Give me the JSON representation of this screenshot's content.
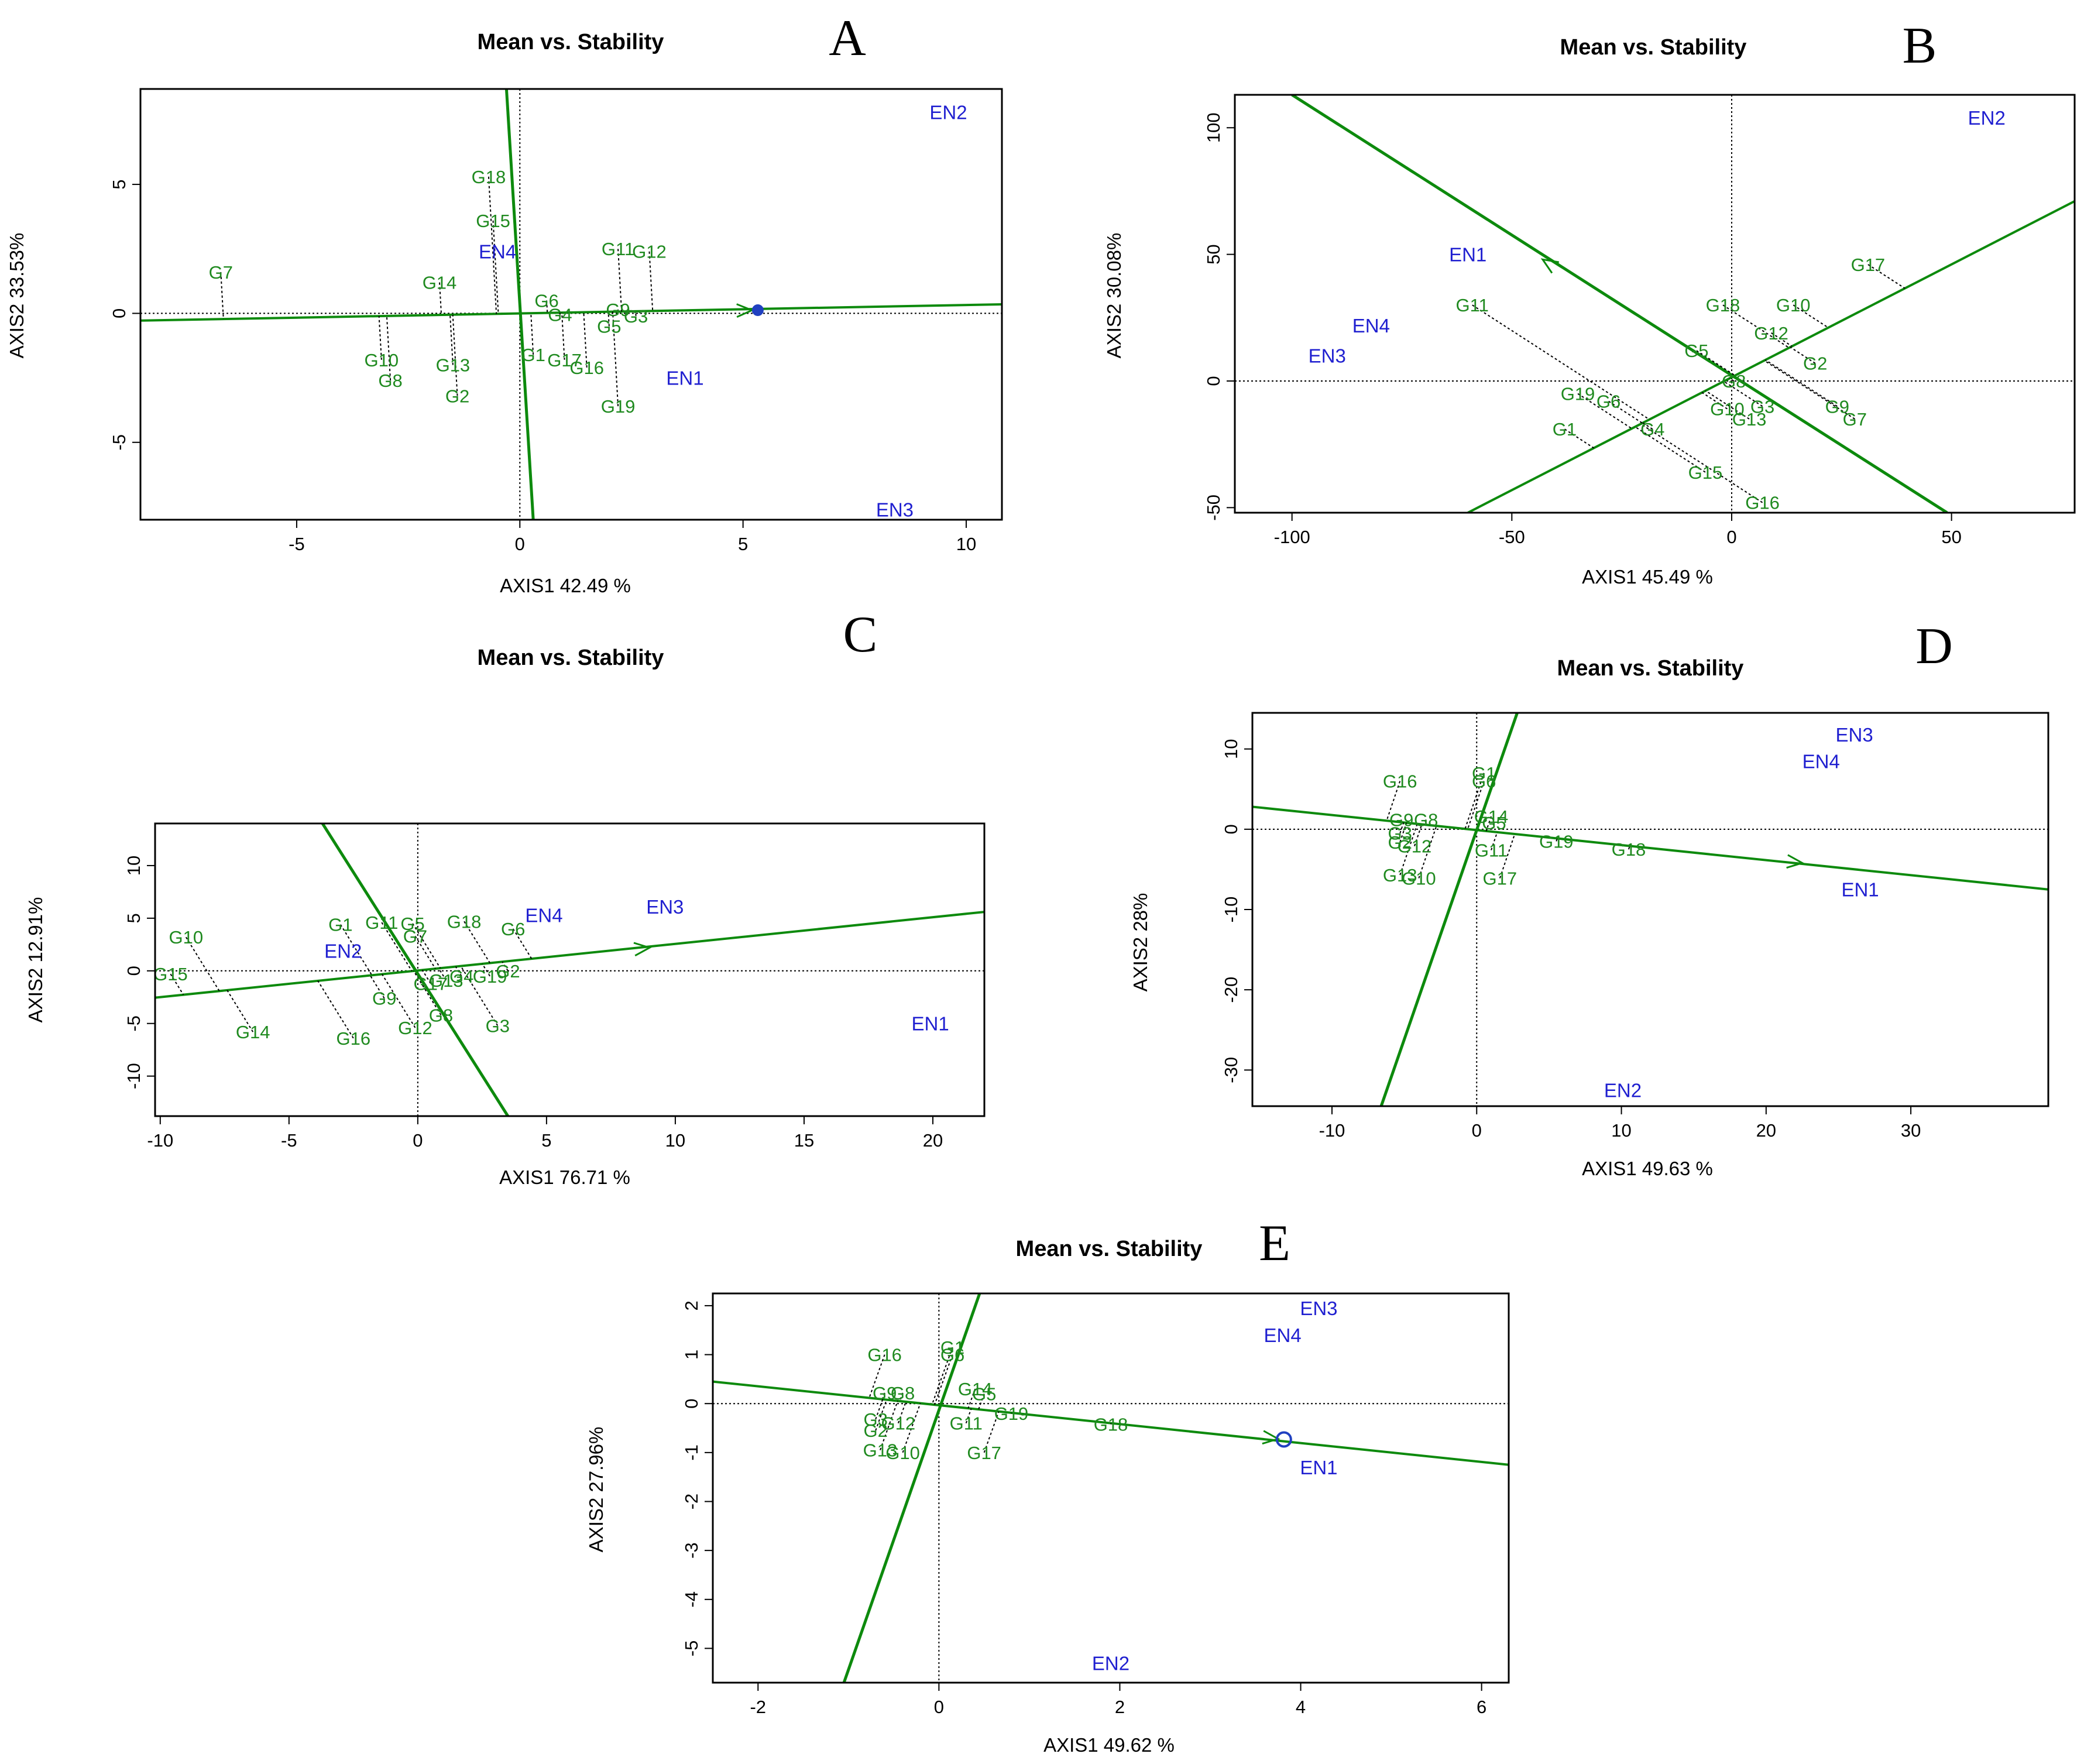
{
  "colors": {
    "genotype": "#1f8a1f",
    "environment": "#1f1fd0",
    "axis": "#0d8a0d",
    "frame": "#000000"
  },
  "chart_data": [
    {
      "id": "A",
      "type": "scatter",
      "panel_letter": "A",
      "title": "Mean vs. Stability",
      "xlabel": "AXIS1 42.49 %",
      "ylabel": "AXIS2 33.53%",
      "xlim": [
        -8.5,
        10.8
      ],
      "ylim": [
        -8.0,
        8.7
      ],
      "xticks": [
        -5,
        0,
        5,
        10
      ],
      "yticks": [
        -5,
        0,
        5
      ],
      "aec_abscissa": [
        [
          -8.5,
          -0.28
        ],
        [
          10.8,
          0.35
        ]
      ],
      "aec_ordinate": [
        [
          -0.3,
          8.7
        ],
        [
          0.3,
          -8.0
        ]
      ],
      "arrow_at": [
        5.2,
        0.12
      ],
      "environments": [
        {
          "name": "EN2",
          "x": 9.6,
          "y": 7.8
        },
        {
          "name": "EN4",
          "x": -0.5,
          "y": 2.4
        },
        {
          "name": "EN1",
          "x": 3.7,
          "y": -2.5
        },
        {
          "name": "EN3",
          "x": 8.4,
          "y": -7.6
        }
      ],
      "genotypes": [
        {
          "name": "G18",
          "x": -0.7,
          "y": 5.3
        },
        {
          "name": "G15",
          "x": -0.6,
          "y": 3.6
        },
        {
          "name": "G7",
          "x": -6.7,
          "y": 1.6
        },
        {
          "name": "G14",
          "x": -1.8,
          "y": 1.2
        },
        {
          "name": "G11",
          "x": 2.2,
          "y": 2.5
        },
        {
          "name": "G12",
          "x": 2.9,
          "y": 2.4
        },
        {
          "name": "G6",
          "x": 0.6,
          "y": 0.5
        },
        {
          "name": "G4",
          "x": 0.9,
          "y": -0.05
        },
        {
          "name": "G9",
          "x": 2.2,
          "y": 0.15
        },
        {
          "name": "G3",
          "x": 2.6,
          "y": -0.1
        },
        {
          "name": "G5",
          "x": 2.0,
          "y": -0.5
        },
        {
          "name": "G10",
          "x": -3.1,
          "y": -1.8
        },
        {
          "name": "G13",
          "x": -1.5,
          "y": -2.0
        },
        {
          "name": "G8",
          "x": -2.9,
          "y": -2.6
        },
        {
          "name": "G2",
          "x": -1.4,
          "y": -3.2
        },
        {
          "name": "G1",
          "x": 0.3,
          "y": -1.6
        },
        {
          "name": "G17",
          "x": 1.0,
          "y": -1.8
        },
        {
          "name": "G16",
          "x": 1.5,
          "y": -2.1
        },
        {
          "name": "G19",
          "x": 2.2,
          "y": -3.6
        }
      ]
    },
    {
      "id": "B",
      "type": "scatter",
      "panel_letter": "B",
      "title": "Mean vs. Stability",
      "xlabel": "AXIS1 45.49 %",
      "ylabel": "AXIS2 30.08%",
      "xlim": [
        -113,
        78
      ],
      "ylim": [
        -52,
        113
      ],
      "xticks": [
        -100,
        -50,
        0,
        50
      ],
      "yticks": [
        -50,
        0,
        50,
        100
      ],
      "aec_abscissa": [
        [
          -60,
          -52
        ],
        [
          78,
          71
        ]
      ],
      "aec_ordinate": [
        [
          -100,
          113
        ],
        [
          49,
          -52
        ]
      ],
      "arrow_at": [
        -43,
        48
      ],
      "environments": [
        {
          "name": "EN2",
          "x": 58,
          "y": 104
        },
        {
          "name": "EN1",
          "x": -60,
          "y": 50
        },
        {
          "name": "EN4",
          "x": -82,
          "y": 22
        },
        {
          "name": "EN3",
          "x": -92,
          "y": 10
        }
      ],
      "genotypes": [
        {
          "name": "G17",
          "x": 31,
          "y": 46
        },
        {
          "name": "G11",
          "x": -59,
          "y": 30
        },
        {
          "name": "G18",
          "x": -2,
          "y": 30
        },
        {
          "name": "G10",
          "x": 14,
          "y": 30
        },
        {
          "name": "G12",
          "x": 9,
          "y": 19
        },
        {
          "name": "G5",
          "x": -8,
          "y": 12
        },
        {
          "name": "G2",
          "x": 19,
          "y": 7
        },
        {
          "name": "G8",
          "x": 0.5,
          "y": 0
        },
        {
          "name": "G19",
          "x": -35,
          "y": -5
        },
        {
          "name": "G6",
          "x": -28,
          "y": -8
        },
        {
          "name": "G1",
          "x": -38,
          "y": -19
        },
        {
          "name": "G4",
          "x": -18,
          "y": -19
        },
        {
          "name": "G10",
          "x": -1,
          "y": -11
        },
        {
          "name": "G3",
          "x": 7,
          "y": -10
        },
        {
          "name": "G13",
          "x": 4,
          "y": -15
        },
        {
          "name": "G9",
          "x": 24,
          "y": -10
        },
        {
          "name": "G7",
          "x": 28,
          "y": -15
        },
        {
          "name": "G15",
          "x": -6,
          "y": -36
        },
        {
          "name": "G16",
          "x": 7,
          "y": -48
        }
      ]
    },
    {
      "id": "C",
      "type": "scatter",
      "panel_letter": "C",
      "title": "Mean vs. Stability",
      "xlabel": "AXIS1 76.71 %",
      "ylabel": "AXIS2 12.91%",
      "xlim": [
        -10.2,
        22
      ],
      "ylim": [
        -13.8,
        14
      ],
      "xticks": [
        -10,
        -5,
        0,
        5,
        10,
        15,
        20
      ],
      "yticks": [
        -10,
        -5,
        0,
        5,
        10
      ],
      "aec_abscissa": [
        [
          -10.2,
          -2.55
        ],
        [
          22,
          5.6
        ]
      ],
      "aec_ordinate": [
        [
          -3.7,
          14
        ],
        [
          3.5,
          -13.8
        ]
      ],
      "arrow_at": [
        9,
        2.2
      ],
      "environments": [
        {
          "name": "EN4",
          "x": 4.9,
          "y": 5.3
        },
        {
          "name": "EN3",
          "x": 9.6,
          "y": 6.1
        },
        {
          "name": "EN2",
          "x": -2.9,
          "y": 1.9
        },
        {
          "name": "EN1",
          "x": 19.9,
          "y": -5.0
        }
      ],
      "genotypes": [
        {
          "name": "G10",
          "x": -9.0,
          "y": 3.2
        },
        {
          "name": "G15",
          "x": -9.6,
          "y": -0.3
        },
        {
          "name": "G14",
          "x": -6.4,
          "y": -5.8
        },
        {
          "name": "G1",
          "x": -3.0,
          "y": 4.4
        },
        {
          "name": "G11",
          "x": -1.4,
          "y": 4.6
        },
        {
          "name": "G5",
          "x": -0.2,
          "y": 4.5
        },
        {
          "name": "G7",
          "x": -0.1,
          "y": 3.3
        },
        {
          "name": "G18",
          "x": 1.8,
          "y": 4.7
        },
        {
          "name": "G6",
          "x": 3.7,
          "y": 4.0
        },
        {
          "name": "G4",
          "x": 1.7,
          "y": -0.5
        },
        {
          "name": "G17",
          "x": 0.5,
          "y": -1.2
        },
        {
          "name": "G13",
          "x": 1.1,
          "y": -0.9
        },
        {
          "name": "G19",
          "x": 2.8,
          "y": -0.5
        },
        {
          "name": "G2",
          "x": 3.5,
          "y": 0.0
        },
        {
          "name": "G9",
          "x": -1.3,
          "y": -2.6
        },
        {
          "name": "G8",
          "x": 0.9,
          "y": -4.2
        },
        {
          "name": "G12",
          "x": -0.1,
          "y": -5.4
        },
        {
          "name": "G3",
          "x": 3.1,
          "y": -5.2
        },
        {
          "name": "G16",
          "x": -2.5,
          "y": -6.4
        }
      ]
    },
    {
      "id": "D",
      "type": "scatter",
      "panel_letter": "D",
      "title": "Mean vs. Stability",
      "xlabel": "AXIS1 49.63 %",
      "ylabel": "AXIS2 28%",
      "xlim": [
        -15.5,
        39.5
      ],
      "ylim": [
        -34.5,
        14.5
      ],
      "xticks": [
        -10,
        0,
        10,
        20,
        30
      ],
      "yticks": [
        -30,
        -20,
        -10,
        0,
        10
      ],
      "aec_abscissa": [
        [
          -15.5,
          2.8
        ],
        [
          39.5,
          -7.5
        ]
      ],
      "aec_ordinate": [
        [
          -6.6,
          -34.5
        ],
        [
          2.8,
          14.5
        ]
      ],
      "arrow_at": [
        22.5,
        -4.2
      ],
      "environments": [
        {
          "name": "EN3",
          "x": 26.1,
          "y": 11.8
        },
        {
          "name": "EN4",
          "x": 23.8,
          "y": 8.5
        },
        {
          "name": "EN1",
          "x": 26.5,
          "y": -7.5
        },
        {
          "name": "EN2",
          "x": 10.1,
          "y": -32.5
        }
      ],
      "genotypes": [
        {
          "name": "G16",
          "x": -5.3,
          "y": 6.0
        },
        {
          "name": "G1",
          "x": 0.5,
          "y": 7.0
        },
        {
          "name": "G6",
          "x": 0.5,
          "y": 6.0
        },
        {
          "name": "G9",
          "x": -5.2,
          "y": 1.2
        },
        {
          "name": "G8",
          "x": -3.5,
          "y": 1.2
        },
        {
          "name": "G14",
          "x": 1.0,
          "y": 1.6
        },
        {
          "name": "G5",
          "x": 1.2,
          "y": 0.8
        },
        {
          "name": "G3",
          "x": -5.3,
          "y": -0.5
        },
        {
          "name": "G2",
          "x": -5.3,
          "y": -1.6
        },
        {
          "name": "G12",
          "x": -4.3,
          "y": -2.1
        },
        {
          "name": "G11",
          "x": 1.0,
          "y": -2.6
        },
        {
          "name": "G19",
          "x": 5.5,
          "y": -1.5
        },
        {
          "name": "G18",
          "x": 10.5,
          "y": -2.5
        },
        {
          "name": "G13",
          "x": -5.3,
          "y": -5.7
        },
        {
          "name": "G10",
          "x": -4.0,
          "y": -6.1
        },
        {
          "name": "G17",
          "x": 1.6,
          "y": -6.1
        }
      ]
    },
    {
      "id": "E",
      "type": "scatter",
      "panel_letter": "E",
      "title": "Mean vs. Stability",
      "xlabel": "AXIS1 49.62 %",
      "ylabel": "AXIS2 27.96%",
      "xlim": [
        -2.5,
        6.3
      ],
      "ylim": [
        -5.7,
        2.25
      ],
      "xticks": [
        -2,
        0,
        2,
        4,
        6
      ],
      "yticks": [
        -5,
        -4,
        -3,
        -2,
        -1,
        0,
        1,
        2
      ],
      "aec_abscissa": [
        [
          -2.5,
          0.45
        ],
        [
          6.3,
          -1.25
        ]
      ],
      "aec_ordinate": [
        [
          -1.05,
          -5.7
        ],
        [
          0.45,
          2.25
        ]
      ],
      "arrow_at": [
        3.75,
        -0.72
      ],
      "environments": [
        {
          "name": "EN3",
          "x": 4.2,
          "y": 1.95
        },
        {
          "name": "EN4",
          "x": 3.8,
          "y": 1.4
        },
        {
          "name": "EN1",
          "x": 4.2,
          "y": -1.3
        },
        {
          "name": "EN2",
          "x": 1.9,
          "y": -5.3
        }
      ],
      "genotypes": [
        {
          "name": "G16",
          "x": -0.6,
          "y": 1.0
        },
        {
          "name": "G1",
          "x": 0.15,
          "y": 1.15
        },
        {
          "name": "G6",
          "x": 0.15,
          "y": 1.0
        },
        {
          "name": "G9",
          "x": -0.6,
          "y": 0.22
        },
        {
          "name": "G8",
          "x": -0.4,
          "y": 0.22
        },
        {
          "name": "G14",
          "x": 0.4,
          "y": 0.3
        },
        {
          "name": "G5",
          "x": 0.5,
          "y": 0.2
        },
        {
          "name": "G3",
          "x": -0.7,
          "y": -0.32
        },
        {
          "name": "G2",
          "x": -0.7,
          "y": -0.55
        },
        {
          "name": "G12",
          "x": -0.45,
          "y": -0.4
        },
        {
          "name": "G11",
          "x": 0.3,
          "y": -0.4
        },
        {
          "name": "G19",
          "x": 0.8,
          "y": -0.2
        },
        {
          "name": "G18",
          "x": 1.9,
          "y": -0.42
        },
        {
          "name": "G13",
          "x": -0.65,
          "y": -0.95
        },
        {
          "name": "G10",
          "x": -0.4,
          "y": -1.0
        },
        {
          "name": "G17",
          "x": 0.5,
          "y": -1.0
        }
      ]
    }
  ]
}
